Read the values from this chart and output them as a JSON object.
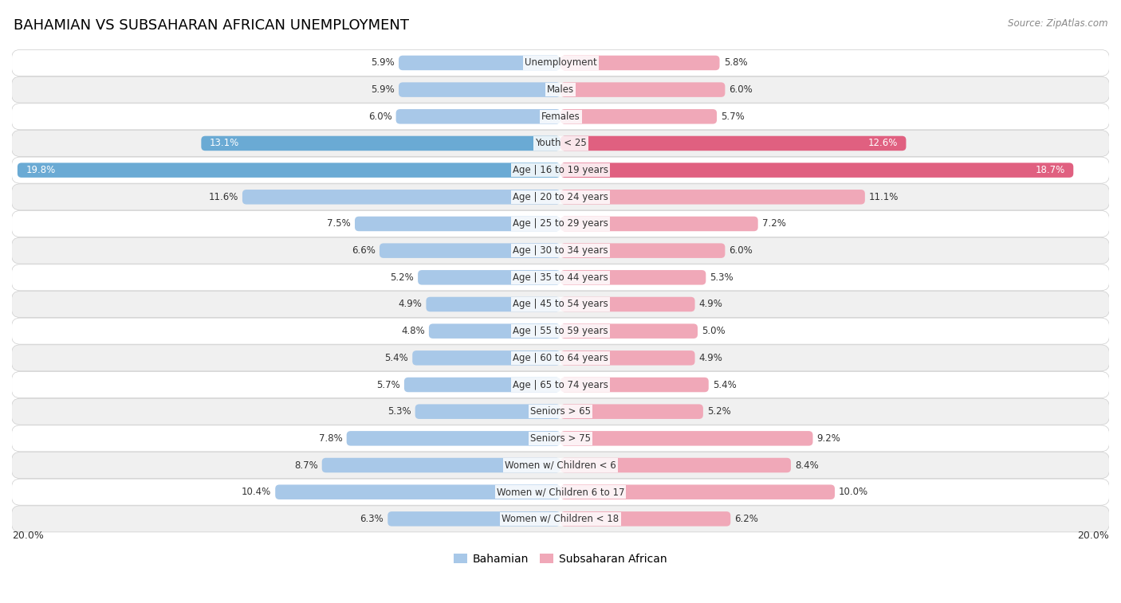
{
  "title": "BAHAMIAN VS SUBSAHARAN AFRICAN UNEMPLOYMENT",
  "source": "Source: ZipAtlas.com",
  "categories": [
    "Unemployment",
    "Males",
    "Females",
    "Youth < 25",
    "Age | 16 to 19 years",
    "Age | 20 to 24 years",
    "Age | 25 to 29 years",
    "Age | 30 to 34 years",
    "Age | 35 to 44 years",
    "Age | 45 to 54 years",
    "Age | 55 to 59 years",
    "Age | 60 to 64 years",
    "Age | 65 to 74 years",
    "Seniors > 65",
    "Seniors > 75",
    "Women w/ Children < 6",
    "Women w/ Children 6 to 17",
    "Women w/ Children < 18"
  ],
  "bahamian": [
    5.9,
    5.9,
    6.0,
    13.1,
    19.8,
    11.6,
    7.5,
    6.6,
    5.2,
    4.9,
    4.8,
    5.4,
    5.7,
    5.3,
    7.8,
    8.7,
    10.4,
    6.3
  ],
  "subsaharan": [
    5.8,
    6.0,
    5.7,
    12.6,
    18.7,
    11.1,
    7.2,
    6.0,
    5.3,
    4.9,
    5.0,
    4.9,
    5.4,
    5.2,
    9.2,
    8.4,
    10.0,
    6.2
  ],
  "bahamian_color": "#a8c8e8",
  "subsaharan_color": "#f0a8b8",
  "bahamian_highlight_color": "#6aaad4",
  "subsaharan_highlight_color": "#e06080",
  "row_bg_odd": "#f0f0f0",
  "row_bg_even": "#ffffff",
  "highlight_row_bg": "#e8e8f8",
  "highlight_row_bg2": "#f8e8e8",
  "bar_height": 0.55,
  "xlim": 20.0,
  "legend_bahamian": "Bahamian",
  "legend_subsaharan": "Subsaharan African",
  "title_fontsize": 13,
  "value_fontsize": 8.5,
  "cat_fontsize": 8.5,
  "source_fontsize": 8.5,
  "highlight_rows": [
    3,
    4
  ]
}
